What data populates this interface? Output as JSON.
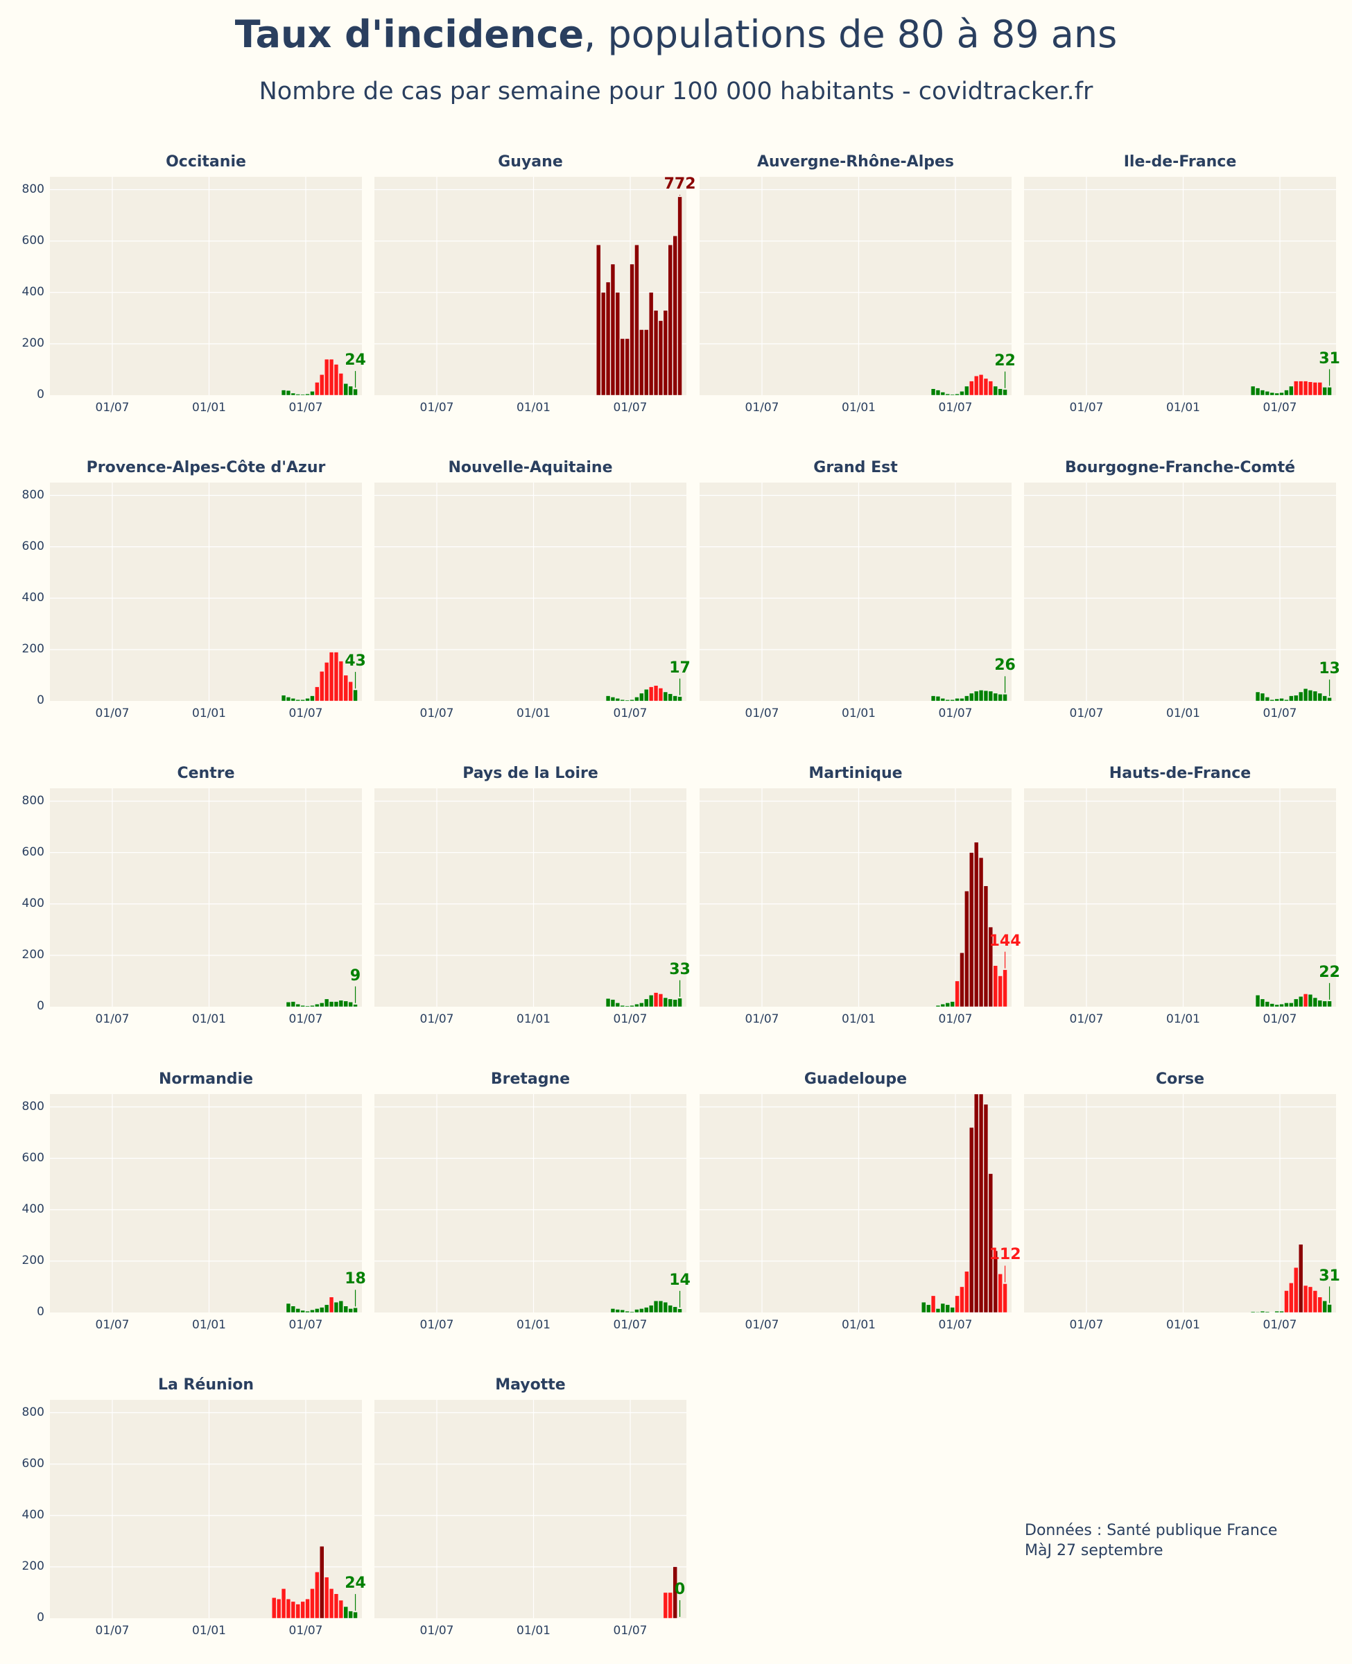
{
  "title_bold": "Taux d'incidence",
  "title_rest": ", populations de 80 à 89 ans",
  "subtitle": "Nombre de cas par semaine pour 100 000 habitants - covidtracker.fr",
  "source_line1": "Données : Santé publique France",
  "source_line2": "MàJ 27 septembre",
  "colors": {
    "green": "#008000",
    "red": "#ff1a1a",
    "darkred": "#8b0000",
    "plot_bg": "#f3efe4",
    "grid": "#ffffff"
  },
  "chart_data": {
    "type": "bar",
    "ylim": [
      0,
      850
    ],
    "yticks": [
      "0",
      "200",
      "400",
      "600",
      "800"
    ],
    "xticks": [
      "01/07",
      "01/01",
      "01/07"
    ],
    "thresholds": {
      "green_below": 50,
      "red_below": 200,
      "darkred_from": 200
    },
    "panels": [
      {
        "name": "Occitanie",
        "last": "24",
        "values": [
          20,
          18,
          8,
          4,
          3,
          5,
          15,
          50,
          80,
          140,
          140,
          120,
          85,
          45,
          35,
          24
        ]
      },
      {
        "name": "Guyane",
        "last": "772",
        "values": [
          585,
          400,
          440,
          510,
          400,
          220,
          220,
          510,
          585,
          255,
          255,
          400,
          330,
          290,
          330,
          585,
          620,
          772
        ]
      },
      {
        "name": "Auvergne-Rhône-Alpes",
        "last": "22",
        "values": [
          25,
          20,
          12,
          5,
          3,
          5,
          15,
          35,
          55,
          75,
          80,
          65,
          55,
          35,
          25,
          22
        ]
      },
      {
        "name": "Ile-de-France",
        "last": "31",
        "values": [
          35,
          28,
          20,
          15,
          10,
          8,
          10,
          20,
          35,
          55,
          55,
          55,
          52,
          50,
          50,
          31,
          31
        ]
      },
      {
        "name": "Provence-Alpes-Côte d'Azur",
        "last": "43",
        "values": [
          22,
          15,
          10,
          5,
          5,
          10,
          20,
          55,
          115,
          150,
          190,
          190,
          155,
          100,
          75,
          43
        ]
      },
      {
        "name": "Nouvelle-Aquitaine",
        "last": "17",
        "values": [
          20,
          15,
          10,
          5,
          3,
          5,
          15,
          30,
          45,
          55,
          60,
          50,
          35,
          28,
          20,
          17
        ]
      },
      {
        "name": "Grand Est",
        "last": "26",
        "values": [
          20,
          18,
          10,
          5,
          5,
          10,
          10,
          20,
          30,
          38,
          42,
          40,
          38,
          30,
          26,
          26
        ]
      },
      {
        "name": "Bourgogne-Franche-Comté",
        "last": "13",
        "values": [
          35,
          30,
          15,
          5,
          8,
          10,
          5,
          20,
          22,
          35,
          48,
          42,
          38,
          30,
          20,
          13
        ]
      },
      {
        "name": "Centre",
        "last": "9",
        "values": [
          18,
          20,
          10,
          5,
          3,
          5,
          10,
          15,
          30,
          20,
          20,
          25,
          22,
          18,
          9
        ]
      },
      {
        "name": "Pays de la Loire",
        "last": "33",
        "values": [
          32,
          28,
          15,
          5,
          3,
          5,
          10,
          15,
          30,
          45,
          55,
          50,
          35,
          30,
          28,
          33
        ]
      },
      {
        "name": "Martinique",
        "last": "144",
        "values": [
          5,
          10,
          15,
          20,
          100,
          210,
          450,
          600,
          640,
          580,
          470,
          310,
          160,
          120,
          144
        ]
      },
      {
        "name": "Hauts-de-France",
        "last": "22",
        "values": [
          45,
          30,
          20,
          12,
          8,
          10,
          15,
          15,
          30,
          40,
          50,
          48,
          35,
          25,
          22,
          22
        ]
      },
      {
        "name": "Normandie",
        "last": "18",
        "values": [
          35,
          25,
          15,
          8,
          5,
          10,
          15,
          20,
          30,
          60,
          40,
          45,
          25,
          15,
          18
        ]
      },
      {
        "name": "Bretagne",
        "last": "14",
        "values": [
          15,
          12,
          10,
          5,
          3,
          12,
          15,
          20,
          28,
          45,
          45,
          40,
          28,
          22,
          14
        ]
      },
      {
        "name": "Guadeloupe",
        "last": "112",
        "values": [
          40,
          30,
          65,
          15,
          35,
          30,
          20,
          65,
          100,
          160,
          720,
          850,
          850,
          810,
          540,
          240,
          150,
          112
        ]
      },
      {
        "name": "Corse",
        "last": "31",
        "values": [
          3,
          2,
          5,
          3,
          1,
          5,
          5,
          85,
          115,
          175,
          265,
          105,
          100,
          85,
          60,
          45,
          31
        ]
      },
      {
        "name": "La Réunion",
        "last": "24",
        "values": [
          80,
          75,
          115,
          75,
          65,
          55,
          65,
          75,
          115,
          180,
          280,
          160,
          115,
          95,
          70,
          45,
          28,
          24
        ]
      },
      {
        "name": "Mayotte",
        "last": "0",
        "values": [
          100,
          100,
          200,
          0
        ]
      }
    ]
  }
}
